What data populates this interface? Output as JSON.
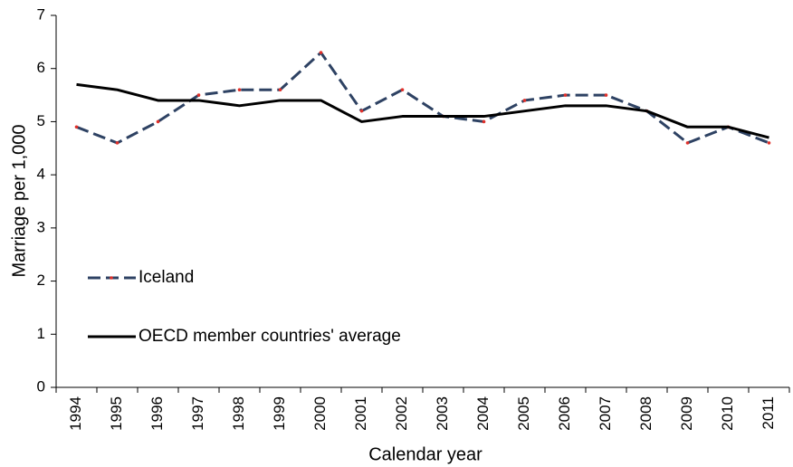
{
  "chart_data": {
    "type": "line",
    "y_label": "Marriage per 1,000",
    "x_label": "Calendar year",
    "categories": [
      "1994",
      "1995",
      "1996",
      "1997",
      "1998",
      "1999",
      "2000",
      "2001",
      "2002",
      "2003",
      "2004",
      "2005",
      "2006",
      "2007",
      "2008",
      "2009",
      "2010",
      "2011"
    ],
    "series": [
      {
        "name": "Iceland",
        "color": "#2e4263",
        "marker_color": "#e0302a",
        "dashed": true,
        "values": [
          4.9,
          4.6,
          5.0,
          5.5,
          5.6,
          5.6,
          6.3,
          5.2,
          5.6,
          5.1,
          5.0,
          5.4,
          5.5,
          5.5,
          5.2,
          4.6,
          4.9,
          4.6
        ]
      },
      {
        "name": "OECD member countries' average",
        "color": "#000000",
        "dashed": false,
        "values": [
          5.7,
          5.6,
          5.4,
          5.4,
          5.3,
          5.4,
          5.4,
          5.0,
          5.1,
          5.1,
          5.1,
          5.2,
          5.3,
          5.3,
          5.2,
          4.9,
          4.9,
          4.7
        ]
      }
    ],
    "ylim": [
      0,
      7
    ],
    "yticks": [
      0,
      1,
      2,
      3,
      4,
      5,
      6,
      7
    ],
    "grid": false
  }
}
